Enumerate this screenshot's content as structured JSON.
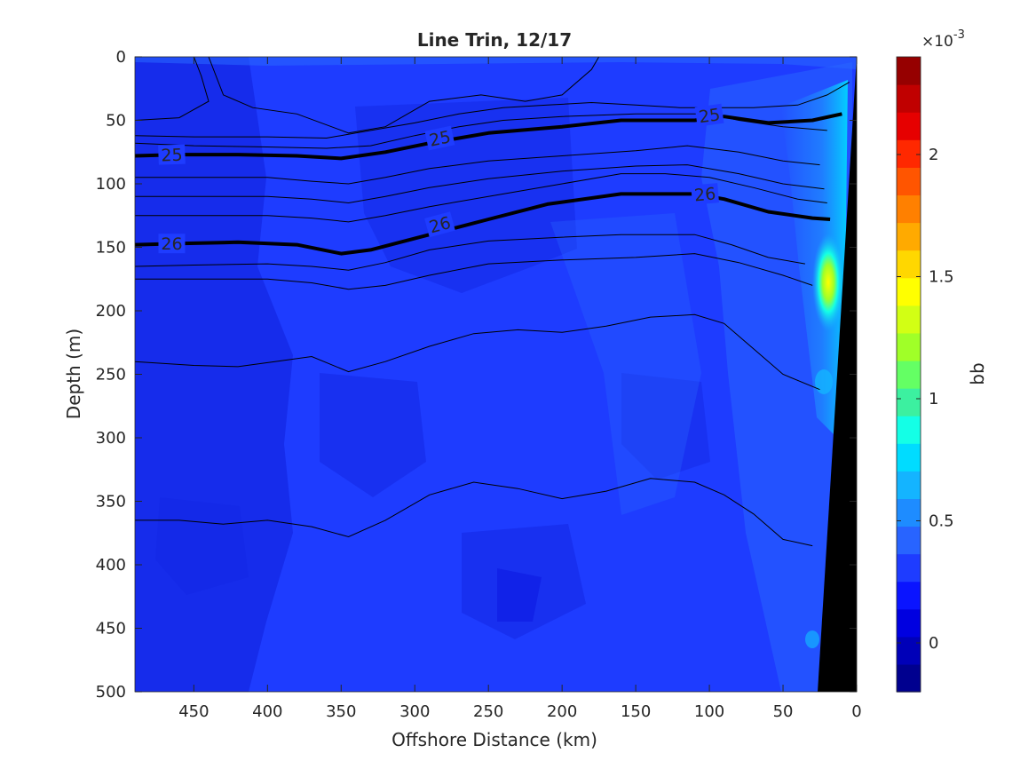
{
  "chart_data": {
    "type": "heatmap",
    "title": "Line Trin, 12/17",
    "xlabel": "Offshore Distance (km)",
    "ylabel": "Depth (m)",
    "colorbar_label": "bb",
    "colorbar_exponent": "×10",
    "colorbar_exponent_power": "-3",
    "xlim": [
      490,
      0
    ],
    "ylim": [
      0,
      500
    ],
    "x_reversed": true,
    "y_reversed": true,
    "x_ticks": [
      450,
      400,
      350,
      300,
      250,
      200,
      150,
      100,
      50,
      0
    ],
    "y_ticks": [
      0,
      50,
      100,
      150,
      200,
      250,
      300,
      350,
      400,
      450,
      500
    ],
    "colorbar_range": [
      -0.2,
      2.4
    ],
    "colorbar_ticks": [
      "0",
      "0.5",
      "1",
      "1.5",
      "2"
    ],
    "colorbar_tick_values": [
      0,
      0.5,
      1,
      1.5,
      2
    ],
    "colormap": [
      "#00008f",
      "#0000b8",
      "#0000e0",
      "#0a14ff",
      "#1e3cff",
      "#2864ff",
      "#1e8cff",
      "#14b4ff",
      "#00dcff",
      "#14ffe6",
      "#3cf0a0",
      "#64ff64",
      "#a0ff28",
      "#d2ff14",
      "#ffff00",
      "#ffd700",
      "#ffaa00",
      "#ff8000",
      "#ff5500",
      "#ff2800",
      "#e60000",
      "#c00000",
      "#960000"
    ],
    "background_color": "#1e3cff",
    "dark_patch_color": "#1428e6",
    "bottom_mask_color": "#000000",
    "contour_levels": [
      "25",
      "26"
    ],
    "bold_contours": [
      {
        "label": "25",
        "points": [
          [
            490,
            78
          ],
          [
            460,
            77
          ],
          [
            420,
            77
          ],
          [
            380,
            78
          ],
          [
            350,
            80
          ],
          [
            320,
            75
          ],
          [
            290,
            68
          ],
          [
            250,
            60
          ],
          [
            200,
            55
          ],
          [
            160,
            50
          ],
          [
            110,
            50
          ],
          [
            90,
            47
          ],
          [
            60,
            52
          ],
          [
            30,
            50
          ],
          [
            10,
            45
          ]
        ]
      },
      {
        "label": "26",
        "points": [
          [
            490,
            148
          ],
          [
            460,
            147
          ],
          [
            420,
            146
          ],
          [
            380,
            148
          ],
          [
            350,
            155
          ],
          [
            330,
            152
          ],
          [
            290,
            140
          ],
          [
            250,
            128
          ],
          [
            210,
            116
          ],
          [
            160,
            108
          ],
          [
            110,
            108
          ],
          [
            90,
            112
          ],
          [
            60,
            122
          ],
          [
            30,
            127
          ],
          [
            18,
            128
          ]
        ]
      }
    ],
    "thin_contours": [
      {
        "points": [
          [
            490,
            50
          ],
          [
            460,
            48
          ],
          [
            440,
            35
          ],
          [
            445,
            15
          ],
          [
            450,
            0
          ]
        ]
      },
      {
        "points": [
          [
            440,
            0
          ],
          [
            430,
            30
          ],
          [
            410,
            40
          ],
          [
            380,
            45
          ],
          [
            345,
            60
          ],
          [
            320,
            55
          ],
          [
            290,
            35
          ],
          [
            255,
            30
          ],
          [
            225,
            35
          ],
          [
            200,
            30
          ],
          [
            180,
            10
          ],
          [
            175,
            0
          ]
        ]
      },
      {
        "points": [
          [
            490,
            62
          ],
          [
            450,
            63
          ],
          [
            400,
            63
          ],
          [
            360,
            64
          ],
          [
            340,
            60
          ],
          [
            300,
            52
          ],
          [
            270,
            45
          ],
          [
            240,
            40
          ],
          [
            210,
            38
          ],
          [
            180,
            36
          ],
          [
            150,
            38
          ],
          [
            120,
            40
          ],
          [
            95,
            40
          ],
          [
            70,
            40
          ],
          [
            40,
            38
          ],
          [
            20,
            30
          ],
          [
            5,
            20
          ]
        ]
      },
      {
        "points": [
          [
            490,
            68
          ],
          [
            450,
            70
          ],
          [
            400,
            71
          ],
          [
            360,
            72
          ],
          [
            330,
            70
          ],
          [
            300,
            62
          ],
          [
            270,
            55
          ],
          [
            240,
            50
          ],
          [
            200,
            47
          ],
          [
            150,
            45
          ],
          [
            120,
            45
          ],
          [
            100,
            45
          ],
          [
            80,
            50
          ],
          [
            50,
            55
          ],
          [
            20,
            58
          ]
        ]
      },
      {
        "points": [
          [
            490,
            95
          ],
          [
            450,
            95
          ],
          [
            400,
            95
          ],
          [
            370,
            98
          ],
          [
            345,
            100
          ],
          [
            320,
            95
          ],
          [
            290,
            88
          ],
          [
            250,
            82
          ],
          [
            200,
            78
          ],
          [
            150,
            74
          ],
          [
            115,
            70
          ],
          [
            80,
            75
          ],
          [
            50,
            82
          ],
          [
            25,
            85
          ]
        ]
      },
      {
        "points": [
          [
            490,
            110
          ],
          [
            450,
            110
          ],
          [
            400,
            110
          ],
          [
            370,
            112
          ],
          [
            345,
            115
          ],
          [
            320,
            110
          ],
          [
            290,
            103
          ],
          [
            250,
            96
          ],
          [
            200,
            90
          ],
          [
            150,
            86
          ],
          [
            115,
            85
          ],
          [
            80,
            92
          ],
          [
            50,
            100
          ],
          [
            22,
            104
          ]
        ]
      },
      {
        "points": [
          [
            490,
            125
          ],
          [
            450,
            125
          ],
          [
            400,
            125
          ],
          [
            370,
            127
          ],
          [
            345,
            130
          ],
          [
            320,
            125
          ],
          [
            290,
            118
          ],
          [
            250,
            110
          ],
          [
            200,
            100
          ],
          [
            160,
            92
          ],
          [
            130,
            92
          ],
          [
            100,
            95
          ],
          [
            70,
            103
          ],
          [
            40,
            112
          ],
          [
            20,
            115
          ]
        ]
      },
      {
        "points": [
          [
            490,
            175
          ],
          [
            450,
            175
          ],
          [
            400,
            175
          ],
          [
            370,
            178
          ],
          [
            345,
            183
          ],
          [
            320,
            180
          ],
          [
            290,
            172
          ],
          [
            250,
            163
          ],
          [
            200,
            160
          ],
          [
            150,
            158
          ],
          [
            110,
            155
          ],
          [
            80,
            162
          ],
          [
            50,
            172
          ],
          [
            30,
            180
          ]
        ]
      },
      {
        "points": [
          [
            490,
            165
          ],
          [
            450,
            164
          ],
          [
            400,
            163
          ],
          [
            370,
            165
          ],
          [
            345,
            168
          ],
          [
            320,
            162
          ],
          [
            290,
            152
          ],
          [
            250,
            145
          ],
          [
            200,
            142
          ],
          [
            160,
            140
          ],
          [
            110,
            140
          ],
          [
            85,
            148
          ],
          [
            60,
            158
          ],
          [
            35,
            163
          ]
        ]
      },
      {
        "points": [
          [
            490,
            240
          ],
          [
            450,
            243
          ],
          [
            420,
            244
          ],
          [
            395,
            240
          ],
          [
            370,
            236
          ],
          [
            345,
            248
          ],
          [
            320,
            240
          ],
          [
            290,
            228
          ],
          [
            260,
            218
          ],
          [
            230,
            215
          ],
          [
            200,
            217
          ],
          [
            170,
            212
          ],
          [
            140,
            205
          ],
          [
            110,
            203
          ],
          [
            90,
            210
          ],
          [
            70,
            230
          ],
          [
            50,
            250
          ],
          [
            25,
            262
          ]
        ]
      },
      {
        "points": [
          [
            490,
            365
          ],
          [
            460,
            365
          ],
          [
            430,
            368
          ],
          [
            400,
            365
          ],
          [
            370,
            370
          ],
          [
            345,
            378
          ],
          [
            320,
            365
          ],
          [
            290,
            345
          ],
          [
            260,
            335
          ],
          [
            230,
            340
          ],
          [
            200,
            348
          ],
          [
            170,
            342
          ],
          [
            140,
            332
          ],
          [
            110,
            335
          ],
          [
            90,
            345
          ],
          [
            70,
            360
          ],
          [
            50,
            380
          ],
          [
            30,
            385
          ]
        ]
      }
    ],
    "contour_labels": [
      {
        "text": "25",
        "x": 465,
        "y": 77,
        "angle": -2
      },
      {
        "text": "25",
        "x": 283,
        "y": 64,
        "angle": -12
      },
      {
        "text": "25",
        "x": 100,
        "y": 46,
        "angle": -8
      },
      {
        "text": "26",
        "x": 465,
        "y": 147,
        "angle": 0
      },
      {
        "text": "26",
        "x": 283,
        "y": 132,
        "angle": -15
      },
      {
        "text": "26",
        "x": 103,
        "y": 108,
        "angle": -5
      }
    ]
  }
}
